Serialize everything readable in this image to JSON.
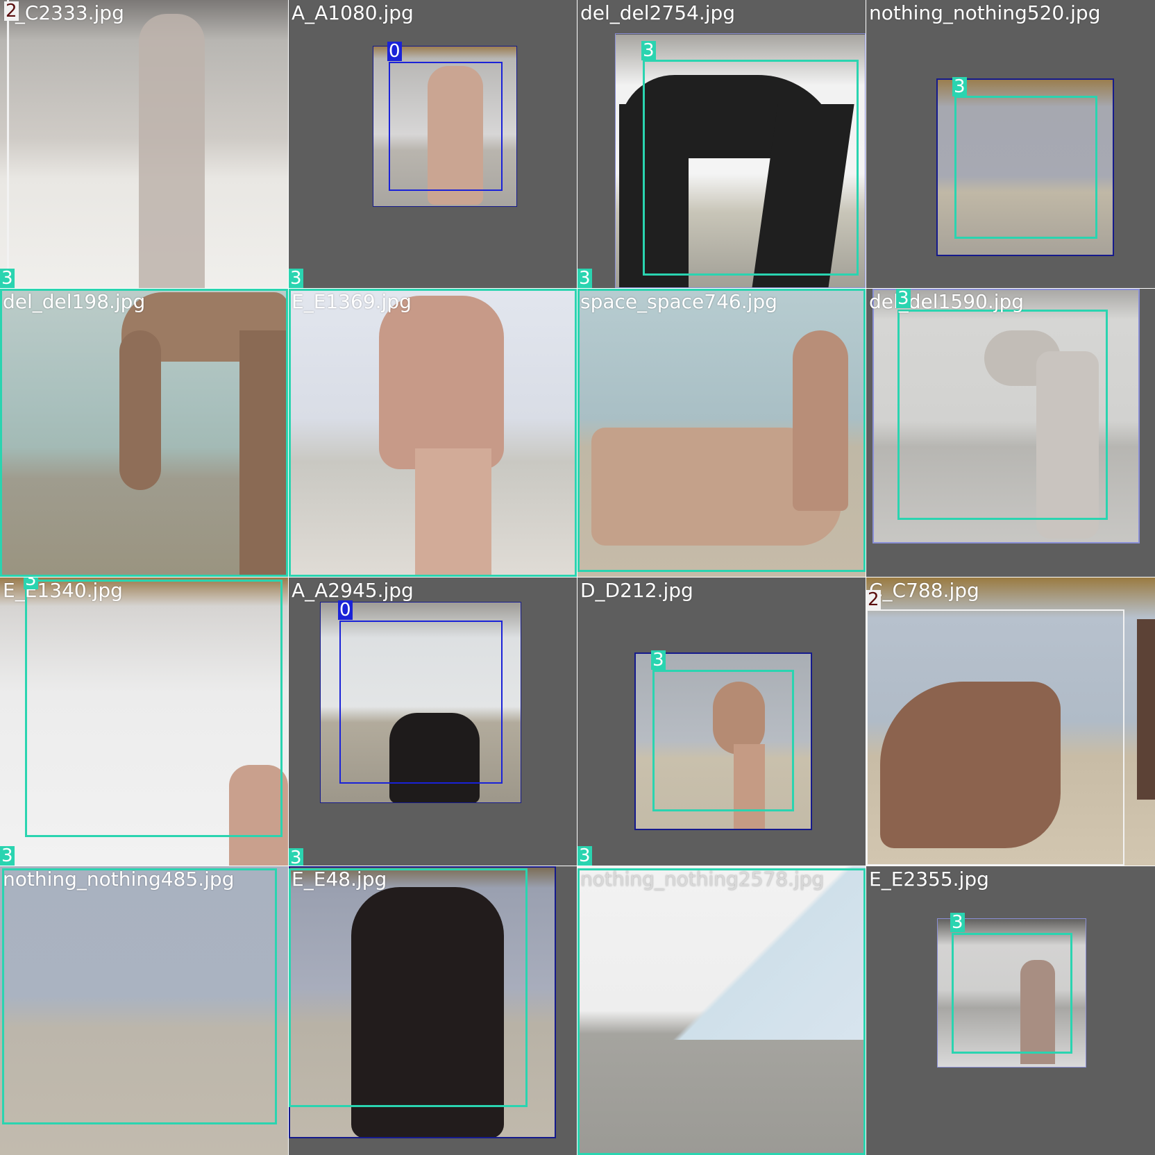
{
  "tiles": [
    {
      "filename": "2_C2333.jpg",
      "labels": [
        "2",
        "3"
      ]
    },
    {
      "filename": "A_A1080.jpg",
      "labels": [
        "0",
        "3"
      ]
    },
    {
      "filename": "del_del2754.jpg",
      "labels": [
        "3",
        "3"
      ]
    },
    {
      "filename": "nothing_nothing520.jpg",
      "labels": [
        "3"
      ]
    },
    {
      "filename": "del_del198.jpg",
      "labels": [
        "3"
      ]
    },
    {
      "filename": "E_E1369.jpg",
      "labels": []
    },
    {
      "filename": "space_space746.jpg",
      "labels": []
    },
    {
      "filename": "del_del1590.jpg",
      "labels": [
        "3"
      ]
    },
    {
      "filename": "E_E1340.jpg",
      "labels": [
        "3",
        "3"
      ]
    },
    {
      "filename": "A_A2945.jpg",
      "labels": [
        "0",
        "3"
      ]
    },
    {
      "filename": "D_D212.jpg",
      "labels": [
        "3",
        "3"
      ]
    },
    {
      "filename": "C_C788.jpg",
      "labels": [
        "2"
      ]
    },
    {
      "filename": "nothing_nothing485.jpg",
      "labels": []
    },
    {
      "filename": "E_E48.jpg",
      "labels": []
    },
    {
      "filename": "nothing_nothing2578.jpg",
      "labels": []
    },
    {
      "filename": "E_E2355.jpg",
      "labels": [
        "3"
      ]
    }
  ],
  "colors": {
    "class_3": "#2ad4b0",
    "class_0": "#1a22d8",
    "class_2": "#f2f2f2",
    "mosaic_background": "#5e5e5e"
  }
}
